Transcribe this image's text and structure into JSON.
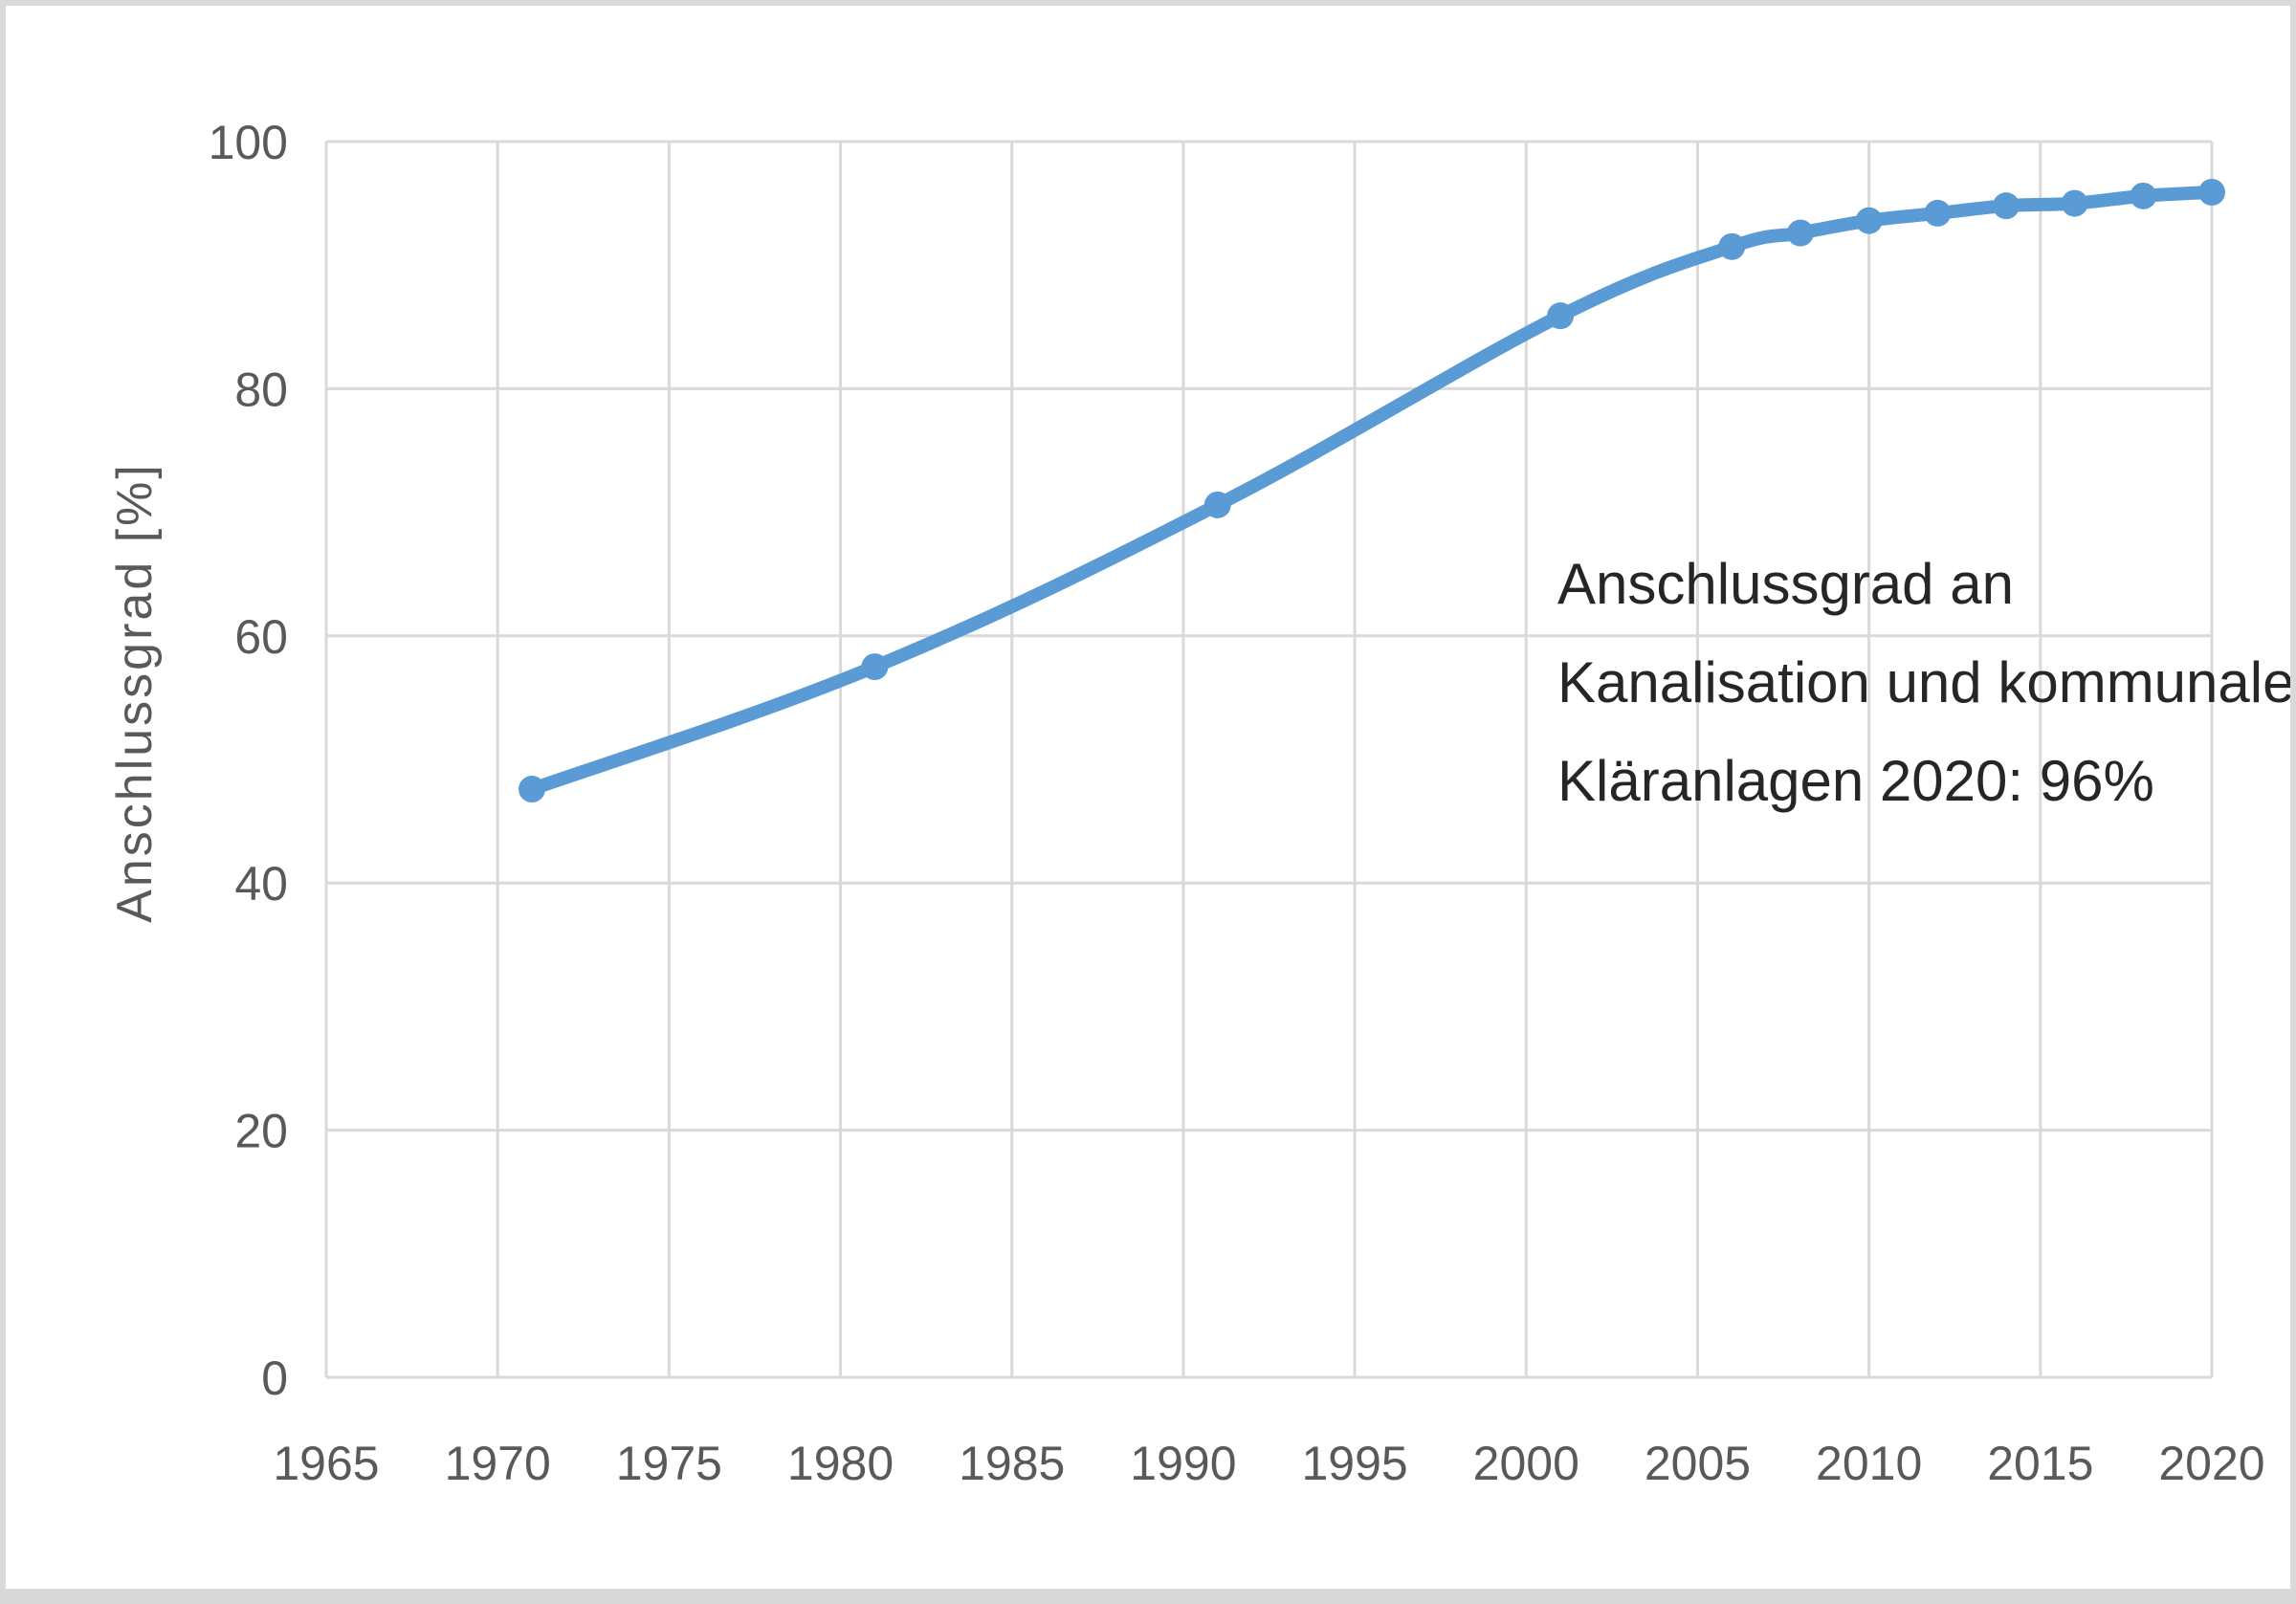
{
  "chart_data": {
    "type": "line",
    "title": "",
    "xlabel": "",
    "ylabel": "Anschlussgrad [%]",
    "xlim": [
      1965,
      2020
    ],
    "ylim": [
      0,
      100
    ],
    "x_ticks": [
      "1965",
      "1970",
      "1975",
      "1980",
      "1985",
      "1990",
      "1995",
      "2000",
      "2005",
      "2010",
      "2015",
      "2020"
    ],
    "y_ticks": [
      "0",
      "20",
      "40",
      "60",
      "80",
      "100"
    ],
    "grid": true,
    "series": [
      {
        "color": "#5b9bd5",
        "x": [
          1971,
          1981,
          1991,
          2001,
          2006,
          2008,
          2010,
          2012,
          2014,
          2016,
          2018,
          2020
        ],
        "y": [
          47.6,
          57.5,
          70.6,
          85.9,
          91.5,
          92.6,
          93.6,
          94.2,
          94.8,
          95.0,
          95.6,
          95.9
        ]
      }
    ],
    "annotation": {
      "lines": [
        "Anschlussgrad an",
        "Kanalisation und kommunale",
        "Kläranlagen 2020: 96%"
      ]
    }
  }
}
